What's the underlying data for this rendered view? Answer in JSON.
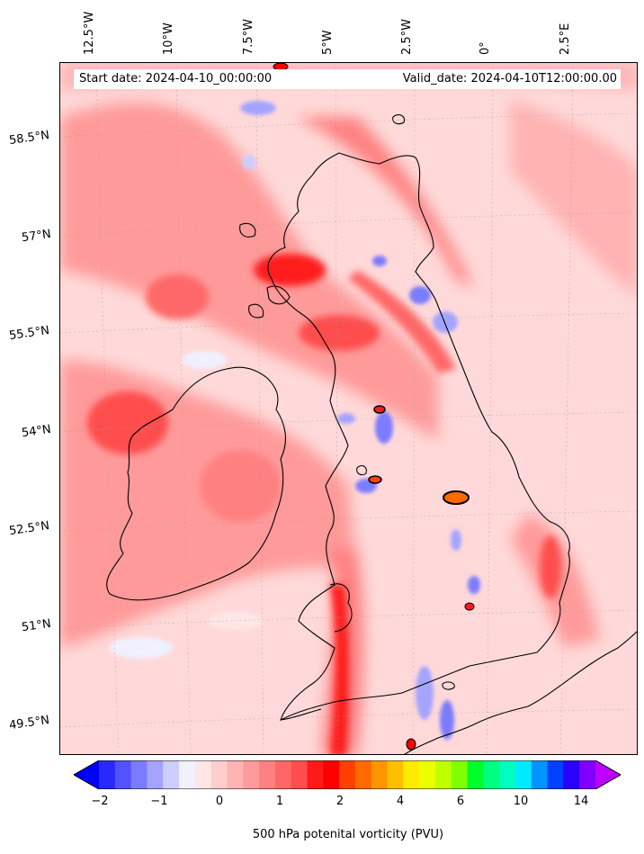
{
  "map": {
    "start_date_text": "Start date: 2024-04-10_00:00:00",
    "valid_date_text": "Valid_date: 2024-04-10T12:00:00.00",
    "lon_ticks": [
      "12.5°W",
      "10°W",
      "7.5°W",
      "5°W",
      "2.5°W",
      "0°",
      "2.5°E"
    ],
    "lat_ticks": [
      "58.5°N",
      "57°N",
      "55.5°N",
      "54°N",
      "52.5°N",
      "51°N",
      "49.5°N"
    ],
    "field_colors": {
      "background_pink": "#ffd9d9",
      "light_red": "#ff9a9a",
      "red": "#ff4a4a",
      "deep_red": "#ff0000",
      "blue_anomaly": "#7b7bff",
      "light_blue": "#e6e6ff"
    }
  },
  "colorbar": {
    "label": "500 hPa potenital vorticity (PVU)",
    "tick_labels": [
      "−2",
      "−1",
      "0",
      "1",
      "2",
      "4",
      "6",
      "10",
      "14"
    ],
    "colors": [
      "#0000ff",
      "#2929ff",
      "#5252ff",
      "#7b7bff",
      "#a4a4ff",
      "#cdcdff",
      "#f0f0ff",
      "#ffe6e6",
      "#ffcdcd",
      "#ffb3b3",
      "#ff9a9a",
      "#ff8080",
      "#ff6767",
      "#ff4d4d",
      "#ff1a1a",
      "#ff0000",
      "#ff4000",
      "#ff6a00",
      "#ff9500",
      "#ffbf00",
      "#ffea00",
      "#eaff00",
      "#bfff00",
      "#80ff00",
      "#00ff2a",
      "#00ff80",
      "#00ffbf",
      "#00eaff",
      "#0095ff",
      "#0040ff",
      "#2a00ff",
      "#8000ff",
      "#c000ff"
    ]
  }
}
